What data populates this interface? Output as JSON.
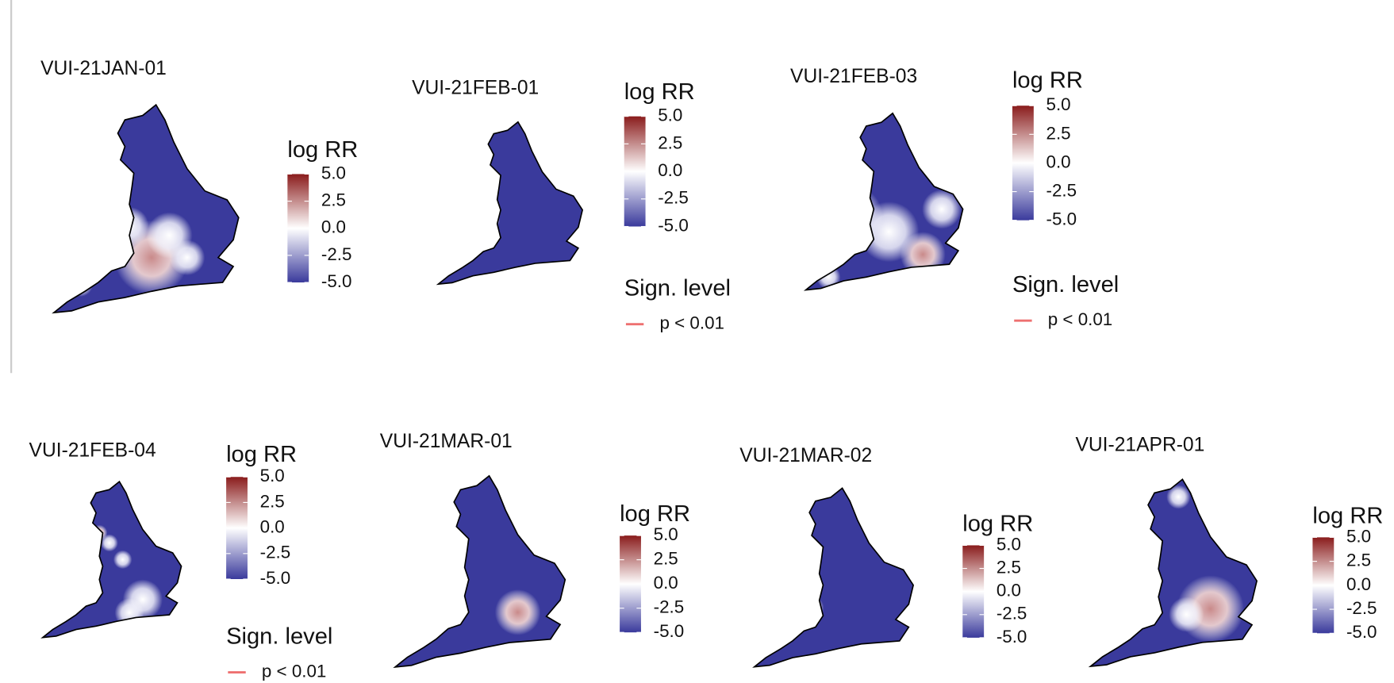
{
  "scale_colors": [
    "#3a3a9c",
    "#ffffff",
    "#8a1c1c"
  ],
  "panels": [
    {
      "title": "VUI-21JAN-01",
      "legend": {
        "title": "log RR",
        "lim": [
          -5,
          5
        ],
        "ticks": [
          {
            "value": 5,
            "label": "5.0"
          },
          {
            "value": 2.5,
            "label": "2.5"
          },
          {
            "value": 0,
            "label": "0.0"
          },
          {
            "value": -2.5,
            "label": "-2.5"
          },
          {
            "value": -5,
            "label": "-5.0"
          }
        ]
      }
    },
    {
      "title": "VUI-21FEB-01",
      "legend": {
        "title": "log RR",
        "lim": [
          -5,
          5
        ],
        "ticks": [
          {
            "value": 5,
            "label": "5.0"
          },
          {
            "value": 2.5,
            "label": "2.5"
          },
          {
            "value": 0,
            "label": "0.0"
          },
          {
            "value": -2.5,
            "label": "-2.5"
          },
          {
            "value": -5,
            "label": "-5.0"
          }
        ]
      },
      "significance": {
        "title": "Sign. level",
        "label": "p < 0.01",
        "color": "#ee7070"
      }
    },
    {
      "title": "VUI-21FEB-03",
      "legend": {
        "title": "log RR",
        "lim": [
          -5,
          5
        ],
        "ticks": [
          {
            "value": 5,
            "label": "5.0"
          },
          {
            "value": 2.5,
            "label": "2.5"
          },
          {
            "value": 0,
            "label": "0.0"
          },
          {
            "value": -2.5,
            "label": "-2.5"
          },
          {
            "value": -5,
            "label": "-5.0"
          }
        ]
      },
      "significance": {
        "title": "Sign. level",
        "label": "p < 0.01",
        "color": "#ee7070"
      }
    },
    {
      "title": "VUI-21FEB-04",
      "legend": {
        "title": "log RR",
        "lim": [
          -5,
          5
        ],
        "ticks": [
          {
            "value": 5,
            "label": "5.0"
          },
          {
            "value": 2.5,
            "label": "2.5"
          },
          {
            "value": 0,
            "label": "0.0"
          },
          {
            "value": -2.5,
            "label": "-2.5"
          },
          {
            "value": -5,
            "label": "-5.0"
          }
        ]
      },
      "significance": {
        "title": "Sign. level",
        "label": "p < 0.01",
        "color": "#ee7070"
      }
    },
    {
      "title": "VUI-21MAR-01",
      "legend": {
        "title": "log RR",
        "lim": [
          -5,
          5
        ],
        "ticks": [
          {
            "value": 5,
            "label": "5.0"
          },
          {
            "value": 2.5,
            "label": "2.5"
          },
          {
            "value": 0,
            "label": "0.0"
          },
          {
            "value": -2.5,
            "label": "-2.5"
          },
          {
            "value": -5,
            "label": "-5.0"
          }
        ]
      }
    },
    {
      "title": "VUI-21MAR-02",
      "legend": {
        "title": "log RR",
        "lim": [
          -5,
          5
        ],
        "ticks": [
          {
            "value": 5,
            "label": "5.0"
          },
          {
            "value": 2.5,
            "label": "2.5"
          },
          {
            "value": 0,
            "label": "0.0"
          },
          {
            "value": -2.5,
            "label": "-2.5"
          },
          {
            "value": -5,
            "label": "-5.0"
          }
        ]
      }
    },
    {
      "title": "VUI-21APR-01",
      "legend": {
        "title": "log RR",
        "lim": [
          -5,
          5
        ],
        "ticks": [
          {
            "value": 5,
            "label": "5.0"
          },
          {
            "value": 2.5,
            "label": "2.5"
          },
          {
            "value": 0,
            "label": "0.0"
          },
          {
            "value": -2.5,
            "label": "-2.5"
          },
          {
            "value": -5,
            "label": "-5.0"
          }
        ]
      }
    }
  ]
}
